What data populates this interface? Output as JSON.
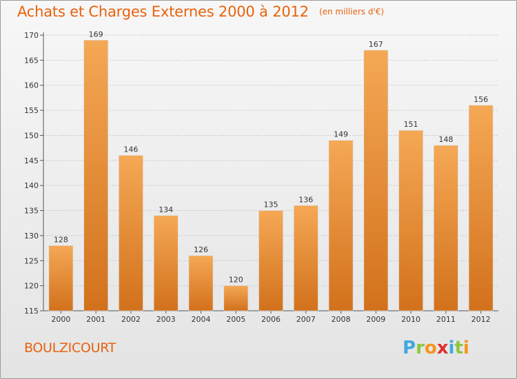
{
  "title": "Achats et Charges Externes 2000 à 2012",
  "unit": "(en milliers d'€)",
  "commune": "BOULZICOURT",
  "logo": {
    "letters": [
      "P",
      "r",
      "o",
      "x",
      "i",
      "t",
      "i"
    ],
    "colors": [
      "#3fa9dd",
      "#8dc63f",
      "#f7941d",
      "#e0302b",
      "#3fa9dd",
      "#8dc63f",
      "#f7941d"
    ]
  },
  "colors": {
    "accent": "#e8620c",
    "bar_top": "#f5a855",
    "bar_bottom": "#d2711c"
  },
  "chart_data": {
    "type": "bar",
    "categories": [
      "2000",
      "2001",
      "2002",
      "2003",
      "2004",
      "2005",
      "2006",
      "2007",
      "2008",
      "2009",
      "2010",
      "2011",
      "2012"
    ],
    "values": [
      128,
      169,
      146,
      134,
      126,
      120,
      135,
      136,
      149,
      167,
      151,
      148,
      156
    ],
    "ylim": [
      115,
      170
    ],
    "yticks": [
      115,
      120,
      125,
      130,
      135,
      140,
      145,
      150,
      155,
      160,
      165,
      170
    ],
    "grid": true
  }
}
